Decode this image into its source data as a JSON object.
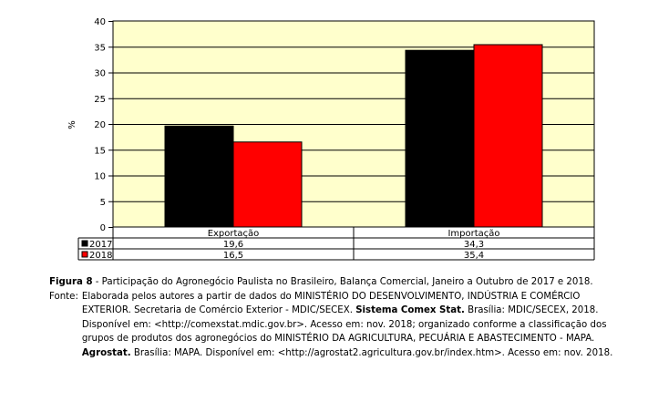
{
  "chart_data": {
    "type": "bar",
    "categories": [
      "Exportação",
      "Importação"
    ],
    "series": [
      {
        "name": "2017",
        "values": [
          19.6,
          34.3
        ],
        "labels": [
          "19,6",
          "34,3"
        ],
        "color": "#000000"
      },
      {
        "name": "2018",
        "values": [
          16.5,
          35.4
        ],
        "labels": [
          "16,5",
          "35,4"
        ],
        "color": "#ff0000"
      }
    ],
    "ylabel": "%",
    "ylim": [
      0,
      40
    ],
    "yticks": [
      0,
      5,
      10,
      15,
      20,
      25,
      30,
      35,
      40
    ],
    "grid": true,
    "plot_background": "#ffffcc",
    "legend": "data-table"
  },
  "caption": {
    "label": "Figura 8",
    "text": " - Participação do Agronegócio Paulista no Brasileiro, Balança Comercial, Janeiro a Outubro de 2017 e 2018."
  },
  "source": {
    "label": "Fonte:",
    "part1": "Elaborada pelos autores a partir de dados do MINISTÉRIO DO DESENVOLVIMENTO, INDÚSTRIA E COMÉRCIO EXTERIOR. Secretaria de Comércio Exterior - MDIC/SECEX. ",
    "bold1": "Sistema Comex Stat.",
    "part2": " Brasília: MDIC/SECEX, 2018. Disponível em: <http://comexstat.mdic.gov.br>. Acesso em: nov. 2018; organizado conforme a classificação dos grupos de produtos dos agronegócios do MINISTÉRIO DA AGRICULTURA, PECUÁRIA E ABASTECIMENTO - MAPA. ",
    "bold2": "Agrostat.",
    "part3": " Brasília: MAPA. Disponível em: <http://agrostat2.agricultura.gov.br/index.htm>. Acesso em: nov. 2018."
  }
}
